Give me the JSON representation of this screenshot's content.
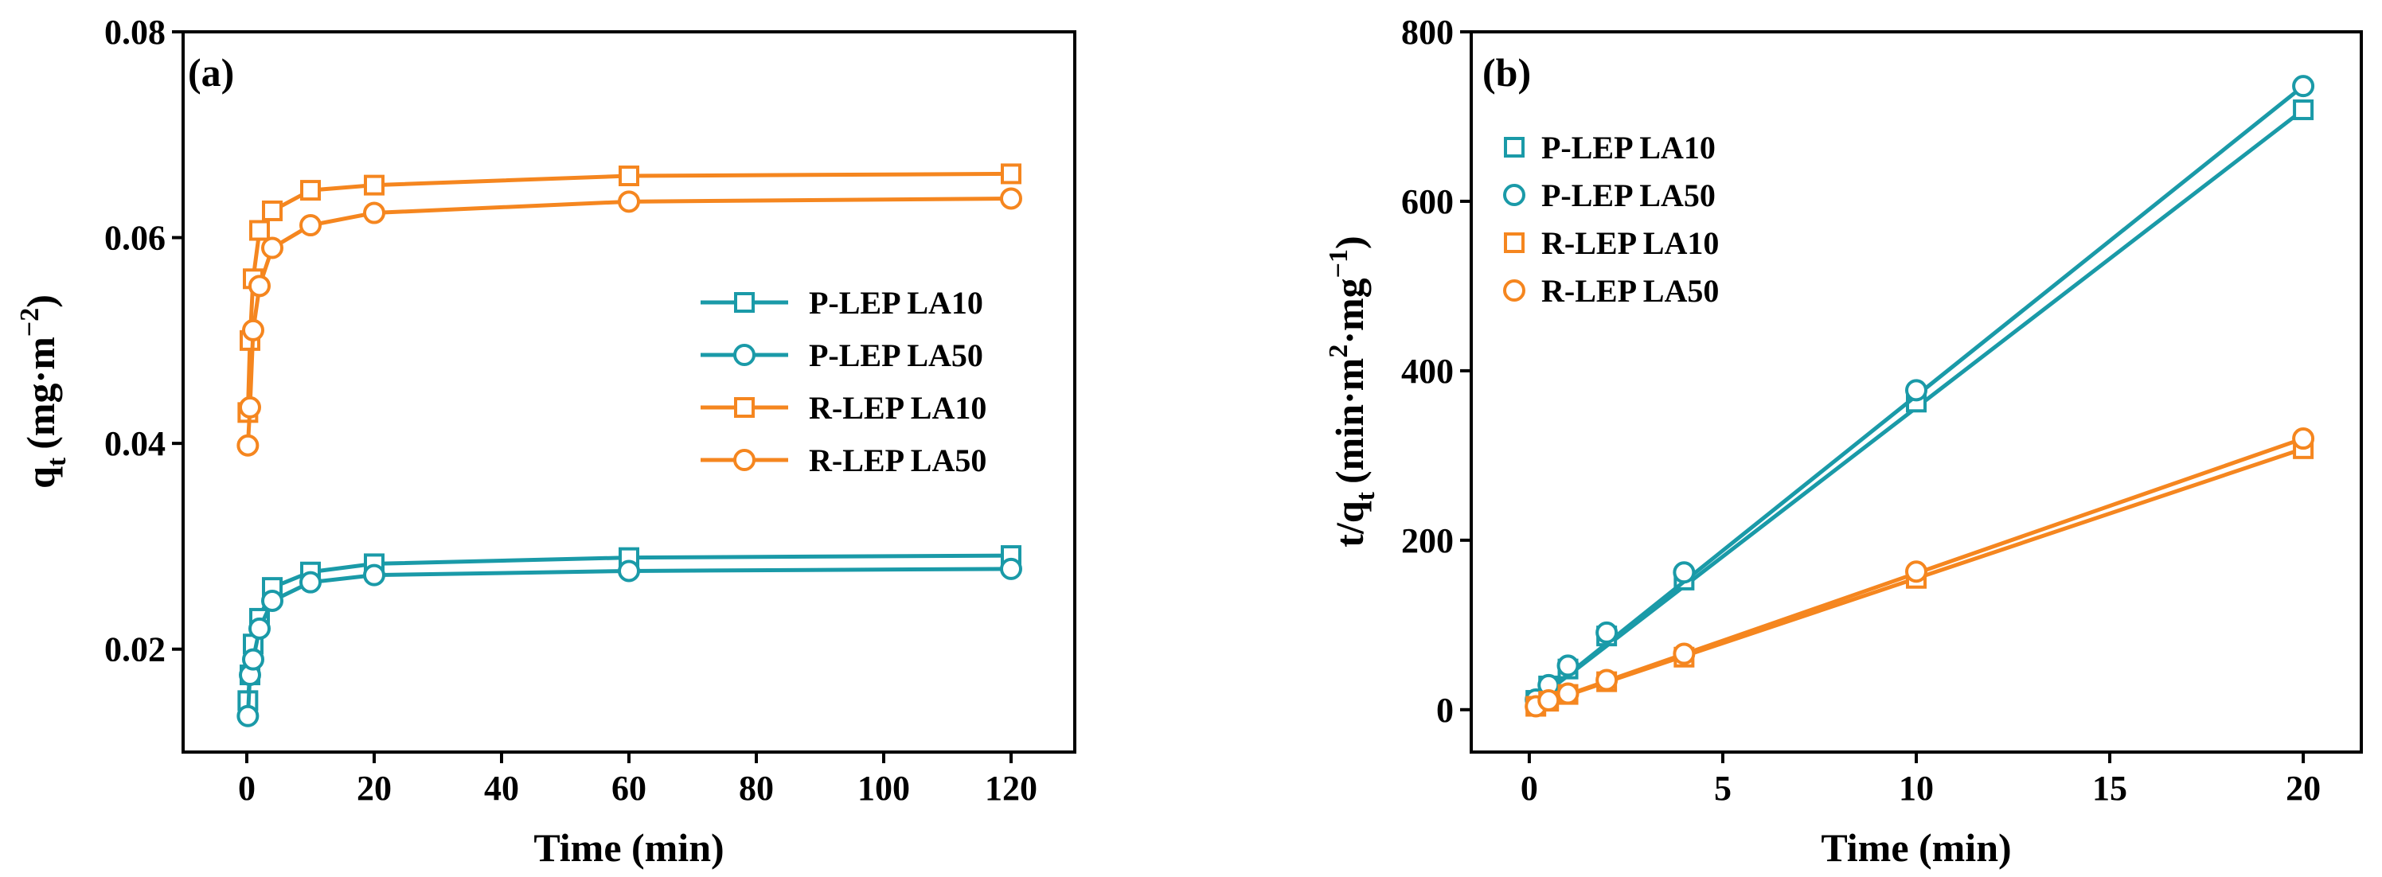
{
  "colors": {
    "teal": "#1a9aa8",
    "orange": "#f5861f",
    "axis": "#000000"
  },
  "chart_data": [
    {
      "type": "line",
      "panel": "(a)",
      "xlabel": "Time (min)",
      "ylabel": {
        "main": "q",
        "sub": "t",
        "unit": "(mg·m",
        "sup": "−2",
        "close": ")"
      },
      "xlim": [
        -10,
        130
      ],
      "ylim": [
        0.01,
        0.08
      ],
      "xticks": [
        0,
        20,
        40,
        60,
        80,
        100,
        120
      ],
      "xtick_labels": [
        "0",
        "20",
        "40",
        "60",
        "80",
        "100",
        "120"
      ],
      "yticks": [
        0.02,
        0.04,
        0.06,
        0.08
      ],
      "ytick_labels": [
        "0.02",
        "0.04",
        "0.06",
        "0.08"
      ],
      "legend_position": "center-right",
      "series": [
        {
          "name": "P-LEP LA10",
          "color": "teal",
          "marker": "square",
          "x": [
            0.17,
            0.5,
            1,
            2,
            4,
            10,
            20,
            60,
            120
          ],
          "y": [
            0.015,
            0.0175,
            0.0205,
            0.023,
            0.026,
            0.0275,
            0.0283,
            0.0289,
            0.0291
          ]
        },
        {
          "name": "P-LEP LA50",
          "color": "teal",
          "marker": "circle",
          "x": [
            0.17,
            0.5,
            1,
            2,
            4,
            10,
            20,
            60,
            120
          ],
          "y": [
            0.0135,
            0.0175,
            0.019,
            0.022,
            0.0247,
            0.0265,
            0.0272,
            0.0276,
            0.0278
          ]
        },
        {
          "name": "R-LEP LA10",
          "color": "orange",
          "marker": "square",
          "x": [
            0.17,
            0.5,
            1,
            2,
            4,
            10,
            20,
            60,
            120
          ],
          "y": [
            0.043,
            0.05,
            0.056,
            0.0607,
            0.0626,
            0.0646,
            0.0651,
            0.066,
            0.0662
          ]
        },
        {
          "name": "R-LEP LA50",
          "color": "orange",
          "marker": "circle",
          "x": [
            0.17,
            0.5,
            1,
            2,
            4,
            10,
            20,
            60,
            120
          ],
          "y": [
            0.0398,
            0.0435,
            0.051,
            0.0553,
            0.059,
            0.0612,
            0.0624,
            0.0635,
            0.0638
          ]
        }
      ]
    },
    {
      "type": "line",
      "panel": "(b)",
      "xlabel": "Time (min)",
      "ylabel": {
        "main": "t/q",
        "sub": "t",
        "unit": "(min·m",
        "sup1": "2",
        "mid": "·mg",
        "sup2": "−1",
        "close": ")"
      },
      "xlim": [
        -1.5,
        21.5
      ],
      "ylim": [
        -50,
        800
      ],
      "xticks": [
        0,
        5,
        10,
        15,
        20
      ],
      "xtick_labels": [
        "0",
        "5",
        "10",
        "15",
        "20"
      ],
      "yticks": [
        0,
        200,
        400,
        600,
        800
      ],
      "ytick_labels": [
        "0",
        "200",
        "400",
        "600",
        "800"
      ],
      "legend_position": "top-left",
      "series": [
        {
          "name": "P-LEP LA10",
          "color": "teal",
          "marker": "square",
          "x": [
            0.17,
            0.5,
            1,
            2,
            4,
            10,
            20
          ],
          "y": [
            11,
            28,
            48,
            87,
            153,
            363,
            708
          ],
          "fit": [
            [
              0,
              5
            ],
            [
              20,
              708
            ]
          ]
        },
        {
          "name": "P-LEP LA50",
          "color": "teal",
          "marker": "circle",
          "x": [
            0.17,
            0.5,
            1,
            2,
            4,
            10,
            20
          ],
          "y": [
            12,
            29,
            52,
            91,
            162,
            377,
            736
          ],
          "fit": [
            [
              0,
              5
            ],
            [
              20,
              736
            ]
          ]
        },
        {
          "name": "R-LEP LA10",
          "color": "orange",
          "marker": "square",
          "x": [
            0.17,
            0.5,
            1,
            2,
            4,
            10,
            20
          ],
          "y": [
            4,
            10,
            18,
            33,
            62,
            155,
            308
          ],
          "fit": [
            [
              0,
              2
            ],
            [
              20,
              308
            ]
          ]
        },
        {
          "name": "R-LEP LA50",
          "color": "orange",
          "marker": "circle",
          "x": [
            0.17,
            0.5,
            1,
            2,
            4,
            10,
            20
          ],
          "y": [
            4,
            11,
            19,
            35,
            66,
            163,
            320
          ],
          "fit": [
            [
              0,
              2
            ],
            [
              20,
              320
            ]
          ]
        }
      ]
    }
  ]
}
